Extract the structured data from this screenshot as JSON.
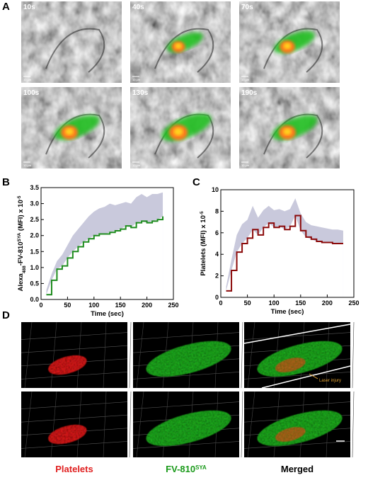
{
  "panel_letters": [
    "A",
    "B",
    "C",
    "D"
  ],
  "panel_a": {
    "timepoints": [
      "10s",
      "40s",
      "70s",
      "100s",
      "130s",
      "190s"
    ],
    "scale_bar": "10 µm"
  },
  "chart_data": [
    {
      "type": "line",
      "xlabel": "Time (sec)",
      "ylabel_parts": [
        "Alexa",
        "488",
        "-FV-810",
        "SYA",
        " (MFI) x 10",
        "-5"
      ],
      "ylabel_styles": [
        "normal",
        "sub",
        "normal",
        "super",
        "normal",
        "super"
      ],
      "xlim": [
        0,
        250
      ],
      "xticks": [
        0,
        50,
        100,
        150,
        200,
        250
      ],
      "ylim": [
        0,
        3.5
      ],
      "yticks": [
        {
          "value": 0,
          "label": "0.0"
        },
        0.5,
        {
          "value": 1,
          "label": "1.0"
        },
        1.5,
        {
          "value": 2,
          "label": "2.0"
        },
        2.5,
        {
          "value": 3,
          "label": "3.0"
        },
        3.5
      ],
      "x": [
        10,
        20,
        30,
        40,
        50,
        60,
        70,
        80,
        90,
        100,
        110,
        120,
        130,
        140,
        150,
        160,
        170,
        180,
        190,
        200,
        210,
        220,
        230
      ],
      "series": [
        {
          "color": "#1e8c1e",
          "band_color": "#c9c9dc",
          "values": [
            0.15,
            0.6,
            0.95,
            1.05,
            1.3,
            1.5,
            1.65,
            1.8,
            1.9,
            2.0,
            2.05,
            2.05,
            2.1,
            2.15,
            2.2,
            2.3,
            2.25,
            2.4,
            2.45,
            2.4,
            2.45,
            2.5,
            2.6
          ],
          "band_upper": [
            0.3,
            0.8,
            1.2,
            1.4,
            1.7,
            2.0,
            2.2,
            2.4,
            2.6,
            2.75,
            2.85,
            2.9,
            3.0,
            2.95,
            3.0,
            3.05,
            3.0,
            3.2,
            3.3,
            3.2,
            3.3,
            3.3,
            3.35
          ]
        }
      ]
    },
    {
      "type": "line",
      "xlabel": "Time (sec)",
      "ylabel_parts": [
        "Platelets (MFI) x 10",
        "-5"
      ],
      "ylabel_styles": [
        "normal",
        "super"
      ],
      "xlim": [
        0,
        250
      ],
      "xticks": [
        0,
        50,
        100,
        150,
        200,
        250
      ],
      "ylim": [
        0,
        10
      ],
      "yticks": [
        0,
        2,
        4,
        6,
        8,
        10
      ],
      "x": [
        10,
        20,
        30,
        40,
        50,
        60,
        70,
        80,
        90,
        100,
        110,
        120,
        130,
        140,
        150,
        160,
        170,
        180,
        190,
        200,
        210,
        220,
        230
      ],
      "series": [
        {
          "color": "#8b0a0a",
          "band_color": "#c9c9dc",
          "values": [
            0.6,
            2.5,
            4.2,
            5.0,
            5.5,
            6.3,
            5.8,
            6.5,
            6.9,
            6.5,
            6.6,
            6.3,
            6.6,
            7.6,
            6.2,
            5.6,
            5.4,
            5.2,
            5.1,
            5.1,
            5.0,
            5.0,
            5.0
          ],
          "band_upper": [
            1.0,
            3.5,
            5.8,
            6.8,
            7.2,
            8.5,
            7.4,
            8.1,
            8.5,
            8.1,
            8.2,
            8.0,
            8.2,
            9.2,
            7.8,
            7.0,
            6.7,
            6.6,
            6.5,
            6.4,
            6.3,
            6.3,
            6.2
          ]
        }
      ]
    }
  ],
  "panel_d": {
    "annotation": "Laser injury",
    "labels": [
      [
        "Platelets"
      ],
      [
        "FV-810",
        "SYA"
      ],
      [
        "Merged"
      ]
    ]
  }
}
